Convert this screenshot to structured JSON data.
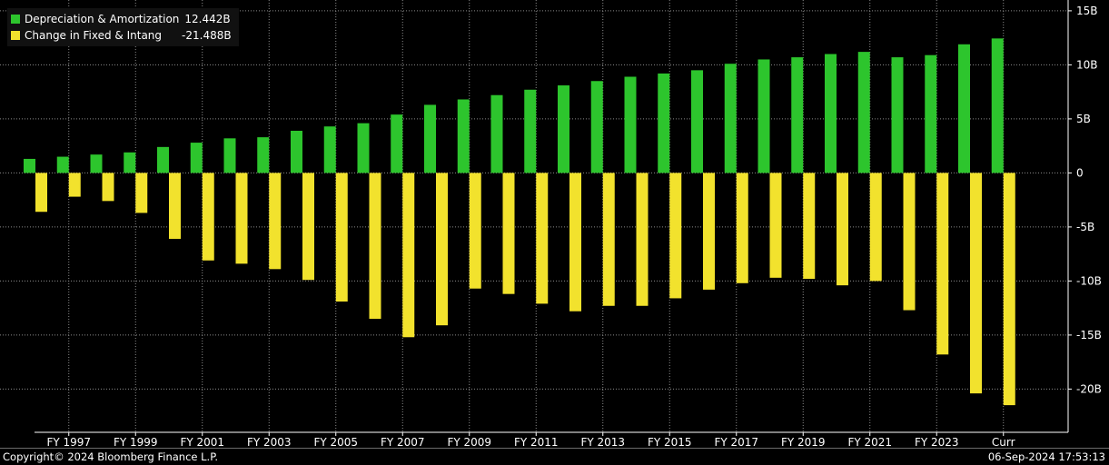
{
  "chart_data": {
    "type": "bar",
    "categories": [
      "FY 1996",
      "FY 1997",
      "FY 1998",
      "FY 1999",
      "FY 2000",
      "FY 2001",
      "FY 2002",
      "FY 2003",
      "FY 2004",
      "FY 2005",
      "FY 2006",
      "FY 2007",
      "FY 2008",
      "FY 2009",
      "FY 2010",
      "FY 2011",
      "FY 2012",
      "FY 2013",
      "FY 2014",
      "FY 2015",
      "FY 2016",
      "FY 2017",
      "FY 2018",
      "FY 2019",
      "FY 2020",
      "FY 2021",
      "FY 2022",
      "FY 2023",
      "FY 2024",
      "Curr"
    ],
    "x_tick_labels": [
      "FY 1997",
      "FY 1999",
      "FY 2001",
      "FY 2003",
      "FY 2005",
      "FY 2007",
      "FY 2009",
      "FY 2011",
      "FY 2013",
      "FY 2015",
      "FY 2017",
      "FY 2019",
      "FY 2021",
      "FY 2023",
      "Curr"
    ],
    "series": [
      {
        "name": "Depreciation & Amortization",
        "legend_value": "12.442B",
        "color": "#2dc52d",
        "values": [
          1.3,
          1.5,
          1.7,
          1.9,
          2.4,
          2.8,
          3.2,
          3.3,
          3.9,
          4.3,
          4.6,
          5.4,
          6.3,
          6.8,
          7.2,
          7.7,
          8.1,
          8.5,
          8.9,
          9.2,
          9.5,
          10.1,
          10.5,
          10.7,
          11.0,
          11.2,
          10.7,
          10.9,
          11.9,
          12.442
        ]
      },
      {
        "name": "Change in Fixed & Intang",
        "legend_value": "-21.488B",
        "color": "#f2e22d",
        "values": [
          -3.6,
          -2.2,
          -2.6,
          -3.7,
          -6.1,
          -8.1,
          -8.4,
          -8.9,
          -9.9,
          -11.9,
          -13.5,
          -15.2,
          -14.1,
          -10.7,
          -11.2,
          -12.1,
          -12.8,
          -12.3,
          -12.3,
          -11.6,
          -10.8,
          -10.2,
          -9.7,
          -9.8,
          -10.4,
          -10.0,
          -12.7,
          -16.8,
          -20.4,
          -21.488
        ]
      }
    ],
    "y_ticks": [
      15,
      10,
      5,
      0,
      -5,
      -10,
      -15,
      -20
    ],
    "y_tick_labels": [
      "15B",
      "10B",
      "5B",
      "0",
      "-5B",
      "-10B",
      "-15B",
      "-20B"
    ],
    "ylim": [
      -24,
      16
    ],
    "legend_position": "top-left",
    "grid": true
  },
  "legend": {
    "items": [
      {
        "name": "Depreciation & Amortization",
        "value": "12.442B",
        "color": "#2dc52d"
      },
      {
        "name": "Change in Fixed & Intang",
        "value": "-21.488B",
        "color": "#f2e22d"
      }
    ]
  },
  "footer": {
    "copyright": "Copyright© 2024 Bloomberg Finance L.P.",
    "timestamp": "06-Sep-2024 17:53:13"
  }
}
